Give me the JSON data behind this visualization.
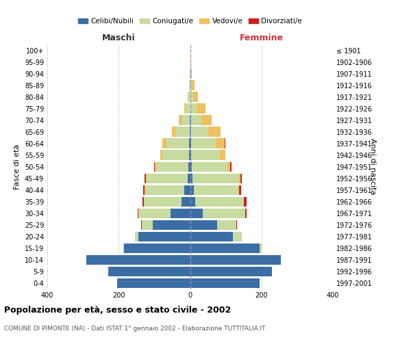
{
  "age_groups": [
    "0-4",
    "5-9",
    "10-14",
    "15-19",
    "20-24",
    "25-29",
    "30-34",
    "35-39",
    "40-44",
    "45-49",
    "50-54",
    "55-59",
    "60-64",
    "65-69",
    "70-74",
    "75-79",
    "80-84",
    "85-89",
    "90-94",
    "95-99",
    "100+"
  ],
  "birth_years": [
    "1997-2001",
    "1992-1996",
    "1987-1991",
    "1982-1986",
    "1977-1981",
    "1972-1976",
    "1967-1971",
    "1962-1966",
    "1957-1961",
    "1952-1956",
    "1947-1951",
    "1942-1946",
    "1937-1941",
    "1932-1936",
    "1927-1931",
    "1922-1926",
    "1917-1921",
    "1912-1916",
    "1907-1911",
    "1902-1906",
    "≤ 1901"
  ],
  "male": {
    "celibi": [
      205,
      230,
      290,
      185,
      145,
      105,
      55,
      24,
      16,
      6,
      5,
      3,
      2,
      1,
      1,
      0,
      0,
      0,
      0,
      0,
      0
    ],
    "coniugati": [
      0,
      0,
      0,
      2,
      10,
      30,
      90,
      105,
      110,
      115,
      90,
      75,
      65,
      40,
      22,
      12,
      5,
      2,
      1,
      0,
      0
    ],
    "vedovi": [
      0,
      0,
      0,
      0,
      0,
      1,
      0,
      1,
      1,
      2,
      3,
      5,
      10,
      10,
      8,
      5,
      2,
      1,
      0,
      0,
      0
    ],
    "divorziati": [
      0,
      0,
      0,
      0,
      0,
      1,
      2,
      3,
      5,
      4,
      2,
      0,
      0,
      0,
      0,
      0,
      0,
      0,
      0,
      0,
      0
    ]
  },
  "female": {
    "nubili": [
      195,
      230,
      255,
      195,
      120,
      75,
      35,
      15,
      10,
      6,
      4,
      3,
      2,
      1,
      1,
      0,
      0,
      0,
      0,
      0,
      0
    ],
    "coniugate": [
      0,
      0,
      0,
      5,
      25,
      55,
      120,
      135,
      125,
      130,
      100,
      80,
      70,
      50,
      30,
      18,
      8,
      4,
      2,
      1,
      0
    ],
    "vedove": [
      0,
      0,
      0,
      0,
      0,
      0,
      0,
      1,
      2,
      5,
      8,
      15,
      25,
      35,
      30,
      25,
      15,
      8,
      3,
      1,
      0
    ],
    "divorziate": [
      0,
      0,
      0,
      0,
      0,
      1,
      3,
      8,
      6,
      4,
      4,
      1,
      2,
      0,
      0,
      0,
      0,
      0,
      0,
      0,
      0
    ]
  },
  "colors": {
    "celibi_nubili": "#3a6ea5",
    "coniugati": "#c8dba0",
    "vedovi": "#f0c060",
    "divorziati": "#cc2020"
  },
  "xlim": 400,
  "title": "Popolazione per età, sesso e stato civile - 2002",
  "subtitle": "COMUNE DI PIMONTE (NA) - Dati ISTAT 1° gennaio 2002 - Elaborazione TUTTITALIA.IT",
  "ylabel_left": "Fasce di età",
  "ylabel_right": "Anni di nascita",
  "label_maschi": "Maschi",
  "label_femmine": "Femmine",
  "legend_labels": [
    "Celibi/Nubili",
    "Coniugati/e",
    "Vedovi/e",
    "Divorziati/e"
  ],
  "background_color": "#ffffff",
  "grid_color": "#cccccc",
  "femmine_color": "#cc3333"
}
